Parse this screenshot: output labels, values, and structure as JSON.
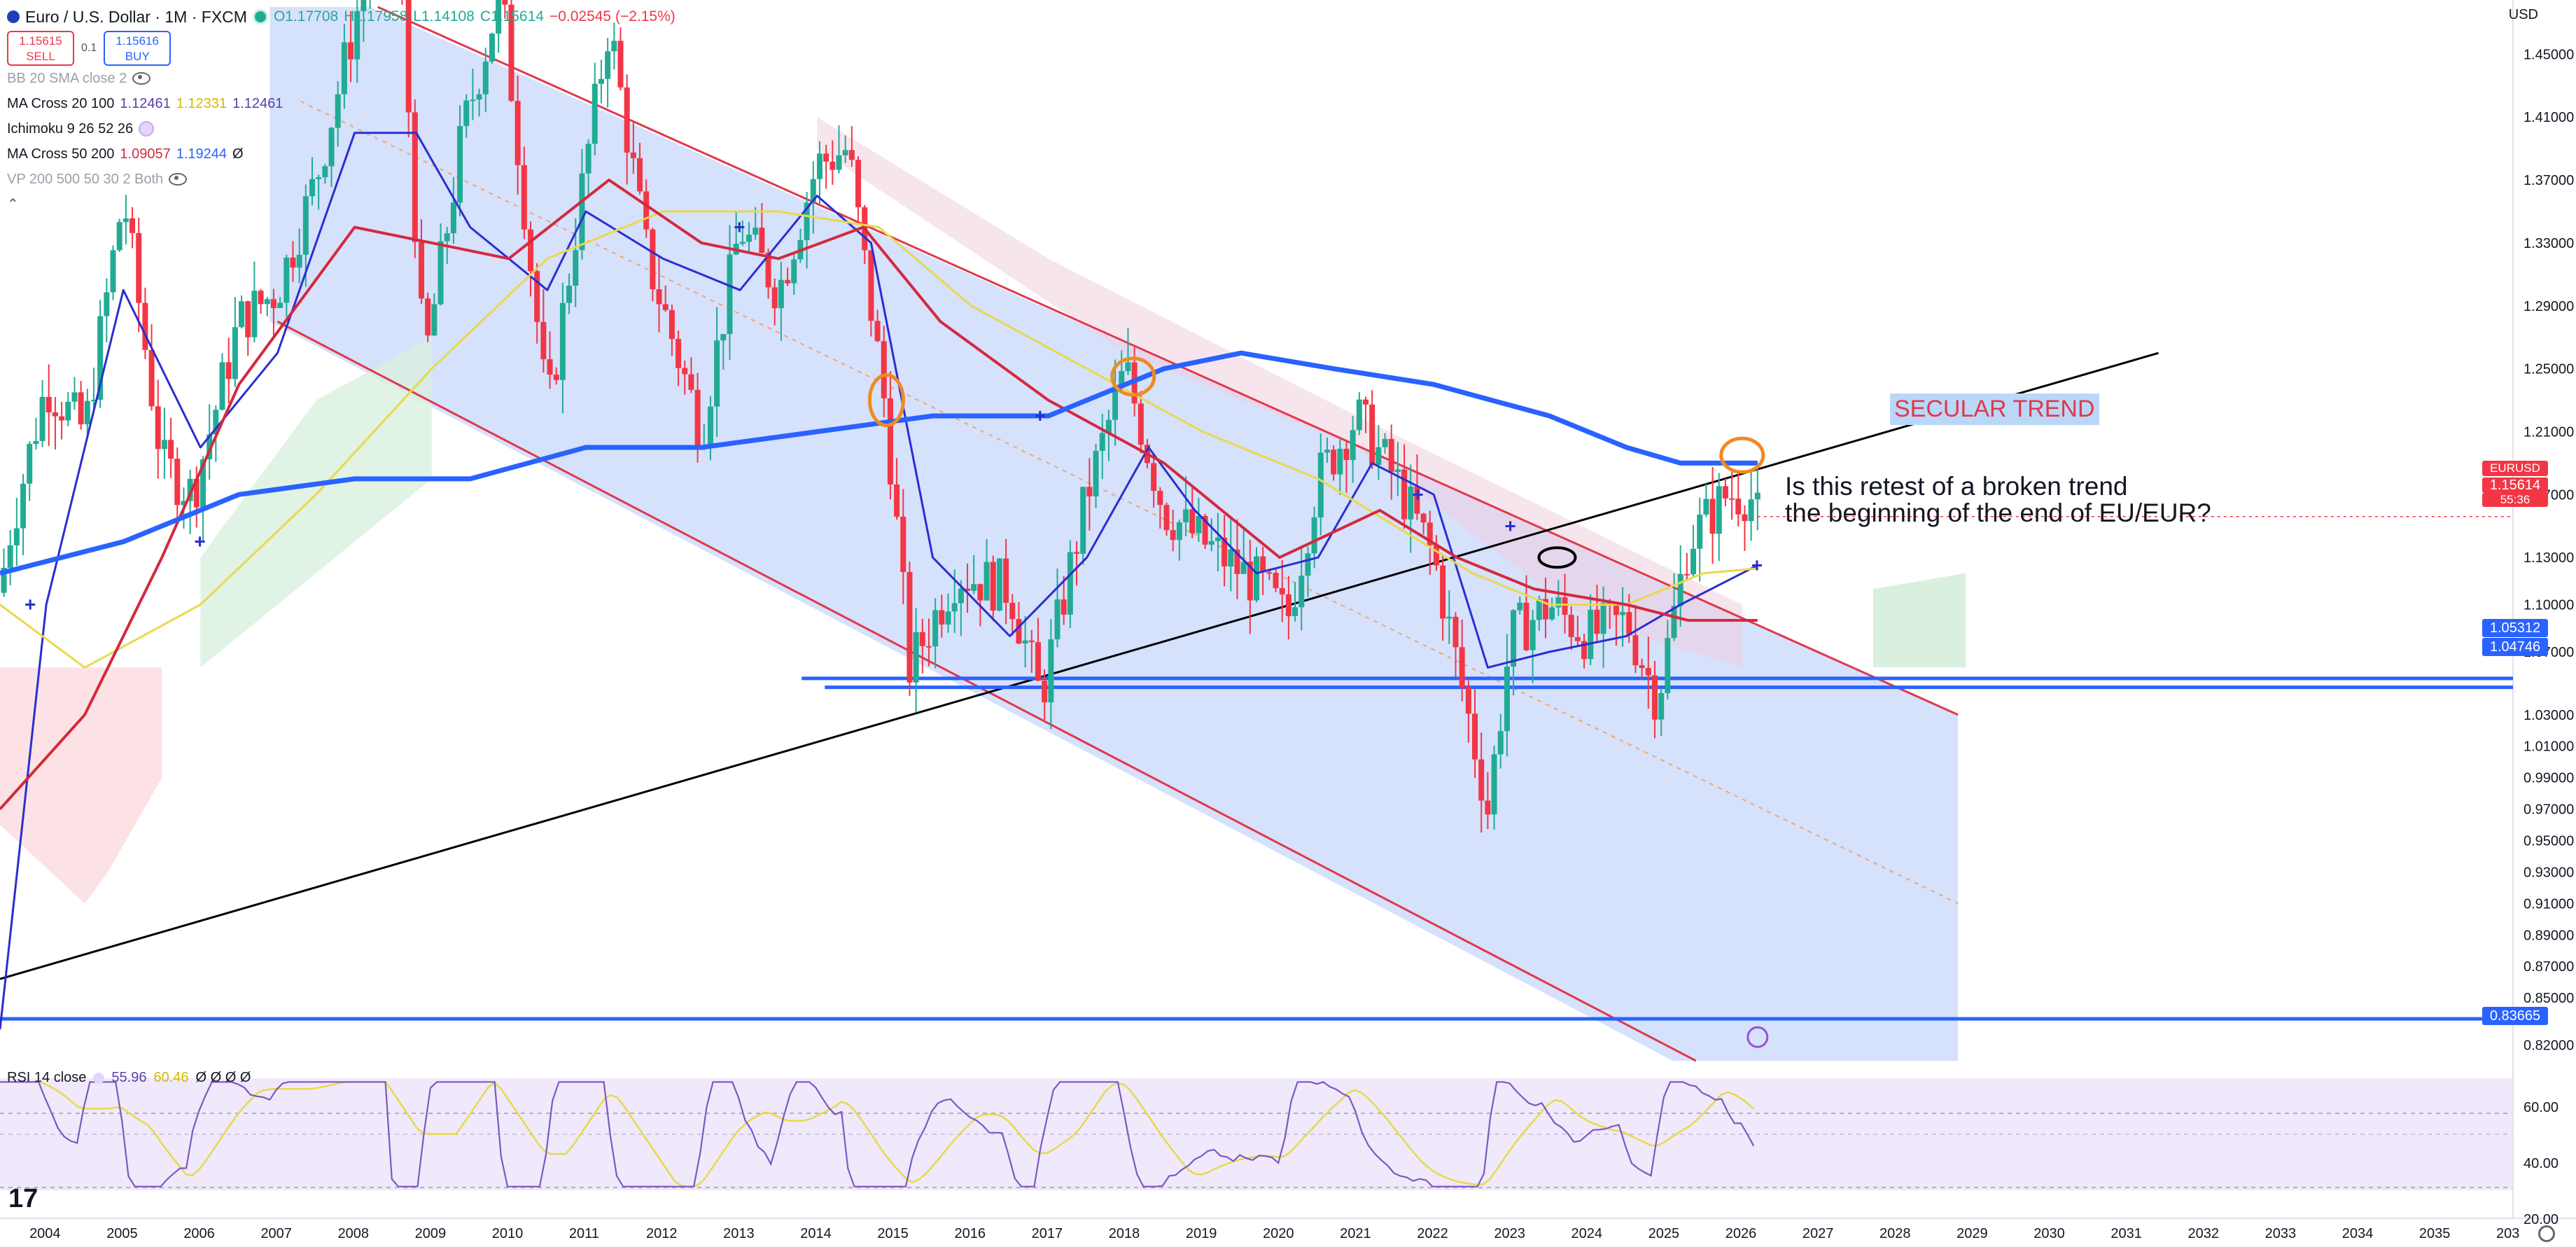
{
  "symbol": {
    "title": "Euro / U.S. Dollar · 1M · FXCM",
    "open": "O1.17708",
    "high": "H1.17958",
    "low": "L1.14108",
    "close": "C1.15614",
    "change": "−0.02545 (−2.15%)"
  },
  "trade": {
    "sell_price": "1.15615",
    "sell_label": "SELL",
    "spread": "0.1",
    "buy_price": "1.15616",
    "buy_label": "BUY"
  },
  "indicators": [
    {
      "name": "BB 20 SMA close 2",
      "values": []
    },
    {
      "name": "MA Cross 20 100",
      "values": [
        {
          "v": "1.12461",
          "c": "#2a2ed0"
        },
        {
          "v": "1.12331",
          "c": "#d4b900"
        },
        {
          "v": "1.12461",
          "c": "#2a2ed0"
        }
      ]
    },
    {
      "name": "Ichimoku 9 26 52 26",
      "values": []
    },
    {
      "name": "MA Cross 50 200",
      "values": [
        {
          "v": "1.09057",
          "c": "#d4293d"
        },
        {
          "v": "1.19244",
          "c": "#2962ff"
        },
        {
          "v": "Ø",
          "c": "#131722"
        }
      ]
    },
    {
      "name": "VP 200 500 50 30 2 Both",
      "values": []
    }
  ],
  "currency": "USD",
  "price_axis": [
    "1.45000",
    "1.41000",
    "1.37000",
    "1.33000",
    "1.29000",
    "1.25000",
    "1.21000",
    "1.17000",
    "1.13000",
    "1.10000",
    "1.07000",
    "1.03000",
    "1.01000",
    "0.99000",
    "0.97000",
    "0.95000",
    "0.93000",
    "0.91000",
    "0.89000",
    "0.87000",
    "0.85000",
    "0.82000"
  ],
  "price_tags": {
    "current_label": "EURUSD",
    "current": "1.15614",
    "countdown": "55:36",
    "level1": "1.05312",
    "level2": "1.04746",
    "level3": "0.83665"
  },
  "time_axis": [
    "2004",
    "2005",
    "2006",
    "2007",
    "2008",
    "2009",
    "2010",
    "2011",
    "2012",
    "2013",
    "2014",
    "2015",
    "2016",
    "2017",
    "2018",
    "2019",
    "2020",
    "2021",
    "2022",
    "2023",
    "2024",
    "2025",
    "2026",
    "2027",
    "2028",
    "2029",
    "2030",
    "2031",
    "2032",
    "2033",
    "2034",
    "2035",
    "203"
  ],
  "annotations": {
    "secular": "SECULAR TREND",
    "question_line1": "Is this retest of a broken trend",
    "question_line2": "the beginning of the end of EU/EUR?"
  },
  "rsi": {
    "label": "RSI 14 close",
    "value": "55.96",
    "ma": "60.46",
    "extra": "Ø Ø Ø Ø",
    "ticks": [
      "60.00",
      "40.00",
      "20.00"
    ]
  },
  "chart_data": {
    "type": "candlestick",
    "title": "Euro / U.S. Dollar · 1M · FXCM",
    "xlabel": "",
    "ylabel": "",
    "ylim": [
      0.81,
      1.48
    ],
    "x_range": [
      "2003.4",
      "2036.0"
    ],
    "horizontal_levels": [
      1.05312,
      1.04746,
      0.83665
    ],
    "price_path": [
      [
        2003.1,
        1.01
      ],
      [
        2003.5,
        1.14
      ],
      [
        2004.0,
        1.24
      ],
      [
        2004.5,
        1.21
      ],
      [
        2005.0,
        1.36
      ],
      [
        2005.5,
        1.19
      ],
      [
        2005.9,
        1.17
      ],
      [
        2006.5,
        1.28
      ],
      [
        2007.0,
        1.3
      ],
      [
        2007.5,
        1.37
      ],
      [
        2008.0,
        1.47
      ],
      [
        2008.5,
        1.58
      ],
      [
        2008.9,
        1.25
      ],
      [
        2009.4,
        1.4
      ],
      [
        2009.9,
        1.49
      ],
      [
        2010.5,
        1.22
      ],
      [
        2011.0,
        1.38
      ],
      [
        2011.3,
        1.47
      ],
      [
        2011.8,
        1.32
      ],
      [
        2012.5,
        1.21
      ],
      [
        2013.0,
        1.34
      ],
      [
        2013.5,
        1.3
      ],
      [
        2014.0,
        1.38
      ],
      [
        2014.4,
        1.39
      ],
      [
        2014.9,
        1.22
      ],
      [
        2015.2,
        1.06
      ],
      [
        2015.8,
        1.12
      ],
      [
        2016.5,
        1.11
      ],
      [
        2016.9,
        1.04
      ],
      [
        2017.5,
        1.17
      ],
      [
        2018.0,
        1.25
      ],
      [
        2018.5,
        1.16
      ],
      [
        2019.0,
        1.14
      ],
      [
        2019.8,
        1.11
      ],
      [
        2020.1,
        1.09
      ],
      [
        2020.5,
        1.18
      ],
      [
        2021.0,
        1.22
      ],
      [
        2021.5,
        1.18
      ],
      [
        2022.0,
        1.13
      ],
      [
        2022.4,
        1.04
      ],
      [
        2022.7,
        0.97
      ],
      [
        2023.0,
        1.08
      ],
      [
        2023.5,
        1.1
      ],
      [
        2024.0,
        1.08
      ],
      [
        2024.5,
        1.09
      ],
      [
        2024.9,
        1.04
      ],
      [
        2025.3,
        1.14
      ],
      [
        2025.8,
        1.17
      ],
      [
        2026.1,
        1.17
      ],
      [
        2026.2,
        1.156
      ]
    ],
    "series": [
      {
        "name": "MA 20",
        "color": "#2a2ed0",
        "points": [
          [
            2003.4,
            0.83
          ],
          [
            2004.0,
            1.1
          ],
          [
            2005.0,
            1.3
          ],
          [
            2006.0,
            1.2
          ],
          [
            2007.0,
            1.26
          ],
          [
            2008.0,
            1.4
          ],
          [
            2008.8,
            1.4
          ],
          [
            2009.5,
            1.34
          ],
          [
            2010.5,
            1.3
          ],
          [
            2011.0,
            1.35
          ],
          [
            2012.0,
            1.32
          ],
          [
            2013.0,
            1.3
          ],
          [
            2014.0,
            1.36
          ],
          [
            2014.7,
            1.33
          ],
          [
            2015.5,
            1.13
          ],
          [
            2016.5,
            1.08
          ],
          [
            2017.5,
            1.13
          ],
          [
            2018.3,
            1.2
          ],
          [
            2018.9,
            1.16
          ],
          [
            2019.7,
            1.12
          ],
          [
            2020.5,
            1.13
          ],
          [
            2021.2,
            1.19
          ],
          [
            2022.0,
            1.17
          ],
          [
            2022.7,
            1.06
          ],
          [
            2023.5,
            1.07
          ],
          [
            2024.5,
            1.08
          ],
          [
            2025.2,
            1.1
          ],
          [
            2026.2,
            1.125
          ]
        ]
      },
      {
        "name": "MA 100",
        "color": "#e8d94b",
        "points": [
          [
            2003.4,
            1.1
          ],
          [
            2004.5,
            1.06
          ],
          [
            2006.0,
            1.1
          ],
          [
            2007.5,
            1.17
          ],
          [
            2009.0,
            1.25
          ],
          [
            2010.5,
            1.32
          ],
          [
            2012.0,
            1.35
          ],
          [
            2013.5,
            1.35
          ],
          [
            2014.8,
            1.34
          ],
          [
            2016.0,
            1.29
          ],
          [
            2017.5,
            1.25
          ],
          [
            2019.0,
            1.21
          ],
          [
            2020.5,
            1.18
          ],
          [
            2021.5,
            1.15
          ],
          [
            2022.5,
            1.12
          ],
          [
            2023.5,
            1.1
          ],
          [
            2024.5,
            1.1
          ],
          [
            2025.5,
            1.12
          ],
          [
            2026.2,
            1.123
          ]
        ]
      },
      {
        "name": "MA 50",
        "color": "#d4293d",
        "points": [
          [
            2003.4,
            0.97
          ],
          [
            2004.5,
            1.03
          ],
          [
            2005.5,
            1.13
          ],
          [
            2006.5,
            1.24
          ],
          [
            2008.0,
            1.34
          ],
          [
            2009.0,
            1.33
          ],
          [
            2010.0,
            1.32
          ],
          [
            2011.3,
            1.37
          ],
          [
            2012.5,
            1.33
          ],
          [
            2013.5,
            1.32
          ],
          [
            2014.6,
            1.34
          ],
          [
            2015.6,
            1.28
          ],
          [
            2017.0,
            1.23
          ],
          [
            2018.5,
            1.19
          ],
          [
            2020.0,
            1.13
          ],
          [
            2021.3,
            1.16
          ],
          [
            2022.3,
            1.13
          ],
          [
            2023.3,
            1.11
          ],
          [
            2024.5,
            1.1
          ],
          [
            2025.3,
            1.09
          ],
          [
            2026.2,
            1.09
          ]
        ]
      },
      {
        "name": "MA 200",
        "color": "#2962ff",
        "points": [
          [
            2003.4,
            1.12
          ],
          [
            2005.0,
            1.14
          ],
          [
            2006.5,
            1.17
          ],
          [
            2008.0,
            1.18
          ],
          [
            2009.5,
            1.18
          ],
          [
            2011.0,
            1.2
          ],
          [
            2012.5,
            1.2
          ],
          [
            2014.0,
            1.21
          ],
          [
            2015.5,
            1.22
          ],
          [
            2017.0,
            1.22
          ],
          [
            2018.5,
            1.25
          ],
          [
            2019.5,
            1.26
          ],
          [
            2020.7,
            1.25
          ],
          [
            2022.0,
            1.24
          ],
          [
            2023.5,
            1.22
          ],
          [
            2024.5,
            1.2
          ],
          [
            2025.2,
            1.19
          ],
          [
            2026.2,
            1.19
          ]
        ]
      }
    ]
  }
}
